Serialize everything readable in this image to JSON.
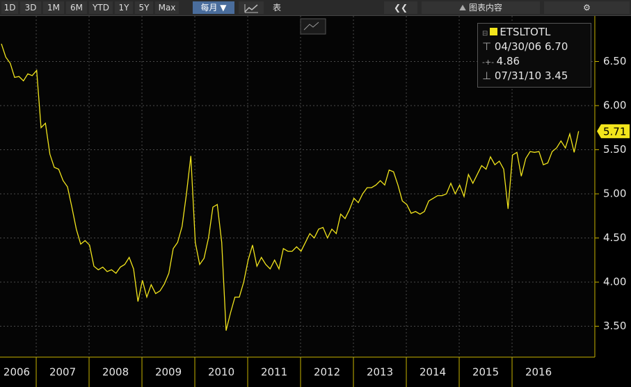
{
  "toolbar": {
    "ranges": [
      "1D",
      "3D",
      "1M",
      "6M",
      "YTD",
      "1Y",
      "5Y",
      "Max"
    ],
    "frequency": "每月 ▼",
    "table": "表",
    "contents": "图表内容"
  },
  "chart_data": {
    "type": "line",
    "series": [
      {
        "name": "ETSLTOTL",
        "color": "#f2e51c",
        "values": [
          6.7,
          6.55,
          6.48,
          6.32,
          6.33,
          6.28,
          6.36,
          6.34,
          6.4,
          5.75,
          5.8,
          5.45,
          5.3,
          5.28,
          5.15,
          5.08,
          4.85,
          4.6,
          4.43,
          4.47,
          4.42,
          4.18,
          4.14,
          4.17,
          4.12,
          4.14,
          4.1,
          4.17,
          4.2,
          4.28,
          4.15,
          3.78,
          4.02,
          3.83,
          3.97,
          3.87,
          3.9,
          3.98,
          4.1,
          4.38,
          4.45,
          4.63,
          5.0,
          5.43,
          4.45,
          4.2,
          4.27,
          4.5,
          4.85,
          4.88,
          4.45,
          3.45,
          3.65,
          3.83,
          3.83,
          4.0,
          4.25,
          4.42,
          4.18,
          4.28,
          4.2,
          4.15,
          4.25,
          4.15,
          4.38,
          4.35,
          4.35,
          4.4,
          4.35,
          4.45,
          4.55,
          4.5,
          4.6,
          4.62,
          4.5,
          4.6,
          4.55,
          4.77,
          4.72,
          4.82,
          4.95,
          4.9,
          5.0,
          5.07,
          5.07,
          5.1,
          5.15,
          5.1,
          5.27,
          5.25,
          5.1,
          4.92,
          4.88,
          4.78,
          4.8,
          4.77,
          4.8,
          4.92,
          4.95,
          4.98,
          4.98,
          5.0,
          5.12,
          5.0,
          5.1,
          4.97,
          5.22,
          5.12,
          5.22,
          5.32,
          5.28,
          5.42,
          5.33,
          5.37,
          5.28,
          4.83,
          5.44,
          5.47,
          5.2,
          5.4,
          5.48,
          5.47,
          5.48,
          5.33,
          5.35,
          5.48,
          5.52,
          5.6,
          5.52,
          5.68,
          5.47,
          5.71
        ]
      }
    ],
    "x": [
      "2006-04",
      "2006-05",
      "2006-06",
      "2006-07",
      "2006-08",
      "2006-09",
      "2006-10",
      "2006-11",
      "2006-12",
      "2007-01",
      "2007-02",
      "2007-03",
      "2007-04",
      "2007-05",
      "2007-06",
      "2007-07",
      "2007-08",
      "2007-09",
      "2007-10",
      "2007-11",
      "2007-12",
      "2008-01",
      "2008-02",
      "2008-03",
      "2008-04",
      "2008-05",
      "2008-06",
      "2008-07",
      "2008-08",
      "2008-09",
      "2008-10",
      "2008-11",
      "2008-12",
      "2009-01",
      "2009-02",
      "2009-03",
      "2009-04",
      "2009-05",
      "2009-06",
      "2009-07",
      "2009-08",
      "2009-09",
      "2009-10",
      "2009-11",
      "2009-12",
      "2010-01",
      "2010-02",
      "2010-03",
      "2010-04",
      "2010-05",
      "2010-06",
      "2010-07",
      "2010-08",
      "2010-09",
      "2010-10",
      "2010-11",
      "2010-12",
      "2011-01",
      "2011-02",
      "2011-03",
      "2011-04",
      "2011-05",
      "2011-06",
      "2011-07",
      "2011-08",
      "2011-09",
      "2011-10",
      "2011-11",
      "2011-12",
      "2012-01",
      "2012-02",
      "2012-03",
      "2012-04",
      "2012-05",
      "2012-06",
      "2012-07",
      "2012-08",
      "2012-09",
      "2012-10",
      "2012-11",
      "2012-12",
      "2013-01",
      "2013-02",
      "2013-03",
      "2013-04",
      "2013-05",
      "2013-06",
      "2013-07",
      "2013-08",
      "2013-09",
      "2013-10",
      "2013-11",
      "2013-12",
      "2014-01",
      "2014-02",
      "2014-03",
      "2014-04",
      "2014-05",
      "2014-06",
      "2014-07",
      "2014-08",
      "2014-09",
      "2014-10",
      "2014-11",
      "2014-12",
      "2015-01",
      "2015-02",
      "2015-03",
      "2015-04",
      "2015-05",
      "2015-06",
      "2015-07",
      "2015-08",
      "2015-09",
      "2015-10",
      "2015-11",
      "2015-12",
      "2016-01",
      "2016-02",
      "2016-03",
      "2016-04",
      "2016-05",
      "2016-06",
      "2016-07",
      "2016-08",
      "2016-09",
      "2016-10",
      "2016-11",
      "2016-12",
      "2017-01",
      "2017-02",
      "2017-03"
    ],
    "xlim": [
      "2006-04",
      "2017-07"
    ],
    "xticks": [
      "2006",
      "2007",
      "2008",
      "2009",
      "2010",
      "2011",
      "2012",
      "2013",
      "2014",
      "2015",
      "2016"
    ],
    "ylim": [
      3.15,
      7.0
    ],
    "yticks": [
      {
        "value": 3.5,
        "label": "3.50"
      },
      {
        "value": 4.0,
        "label": "4.00"
      },
      {
        "value": 4.5,
        "label": "4.50"
      },
      {
        "value": 5.0,
        "label": "5.00"
      },
      {
        "value": 5.5,
        "label": "5.50"
      },
      {
        "value": 6.0,
        "label": "6.00"
      },
      {
        "value": 6.5,
        "label": "6.50"
      }
    ],
    "grid": true,
    "last_value": {
      "value": 5.71,
      "label": "5.71"
    },
    "stats": {
      "high": {
        "date": "04/30/06",
        "value": 6.7,
        "label": "6.70"
      },
      "average": {
        "value": 4.86,
        "label": "4.86"
      },
      "low": {
        "date": "07/31/10",
        "value": 3.45,
        "label": "3.45"
      }
    }
  }
}
